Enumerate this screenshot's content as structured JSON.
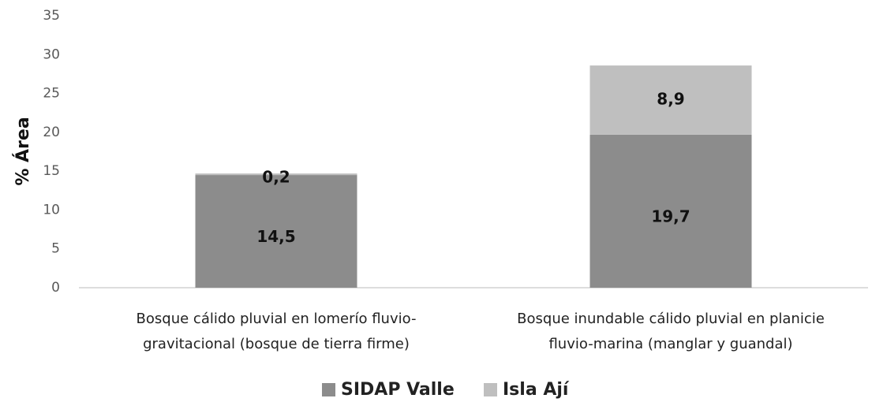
{
  "chart_data": {
    "type": "stacked_bar",
    "ylabel": "% Área",
    "categories": [
      [
        "Bosque cálido pluvial en lomerío fluvio-",
        "gravitacional (bosque de tierra firme)"
      ],
      [
        "Bosque inundable cálido pluvial en planicie",
        "fluvio-marina (manglar y guandal)"
      ]
    ],
    "series": [
      {
        "name": "SIDAP Valle",
        "color": "#8c8c8c",
        "values": [
          14.5,
          19.7
        ],
        "value_labels": [
          "14,5",
          "19,7"
        ]
      },
      {
        "name": "Isla Ají",
        "color": "#bfbfbf",
        "values": [
          0.2,
          8.9
        ],
        "value_labels": [
          "0,2",
          "8,9"
        ]
      }
    ],
    "ylim": [
      0,
      35
    ],
    "yticks": [
      0,
      5,
      10,
      15,
      20,
      25,
      30,
      35
    ],
    "grid": false,
    "legend": "bottom"
  }
}
